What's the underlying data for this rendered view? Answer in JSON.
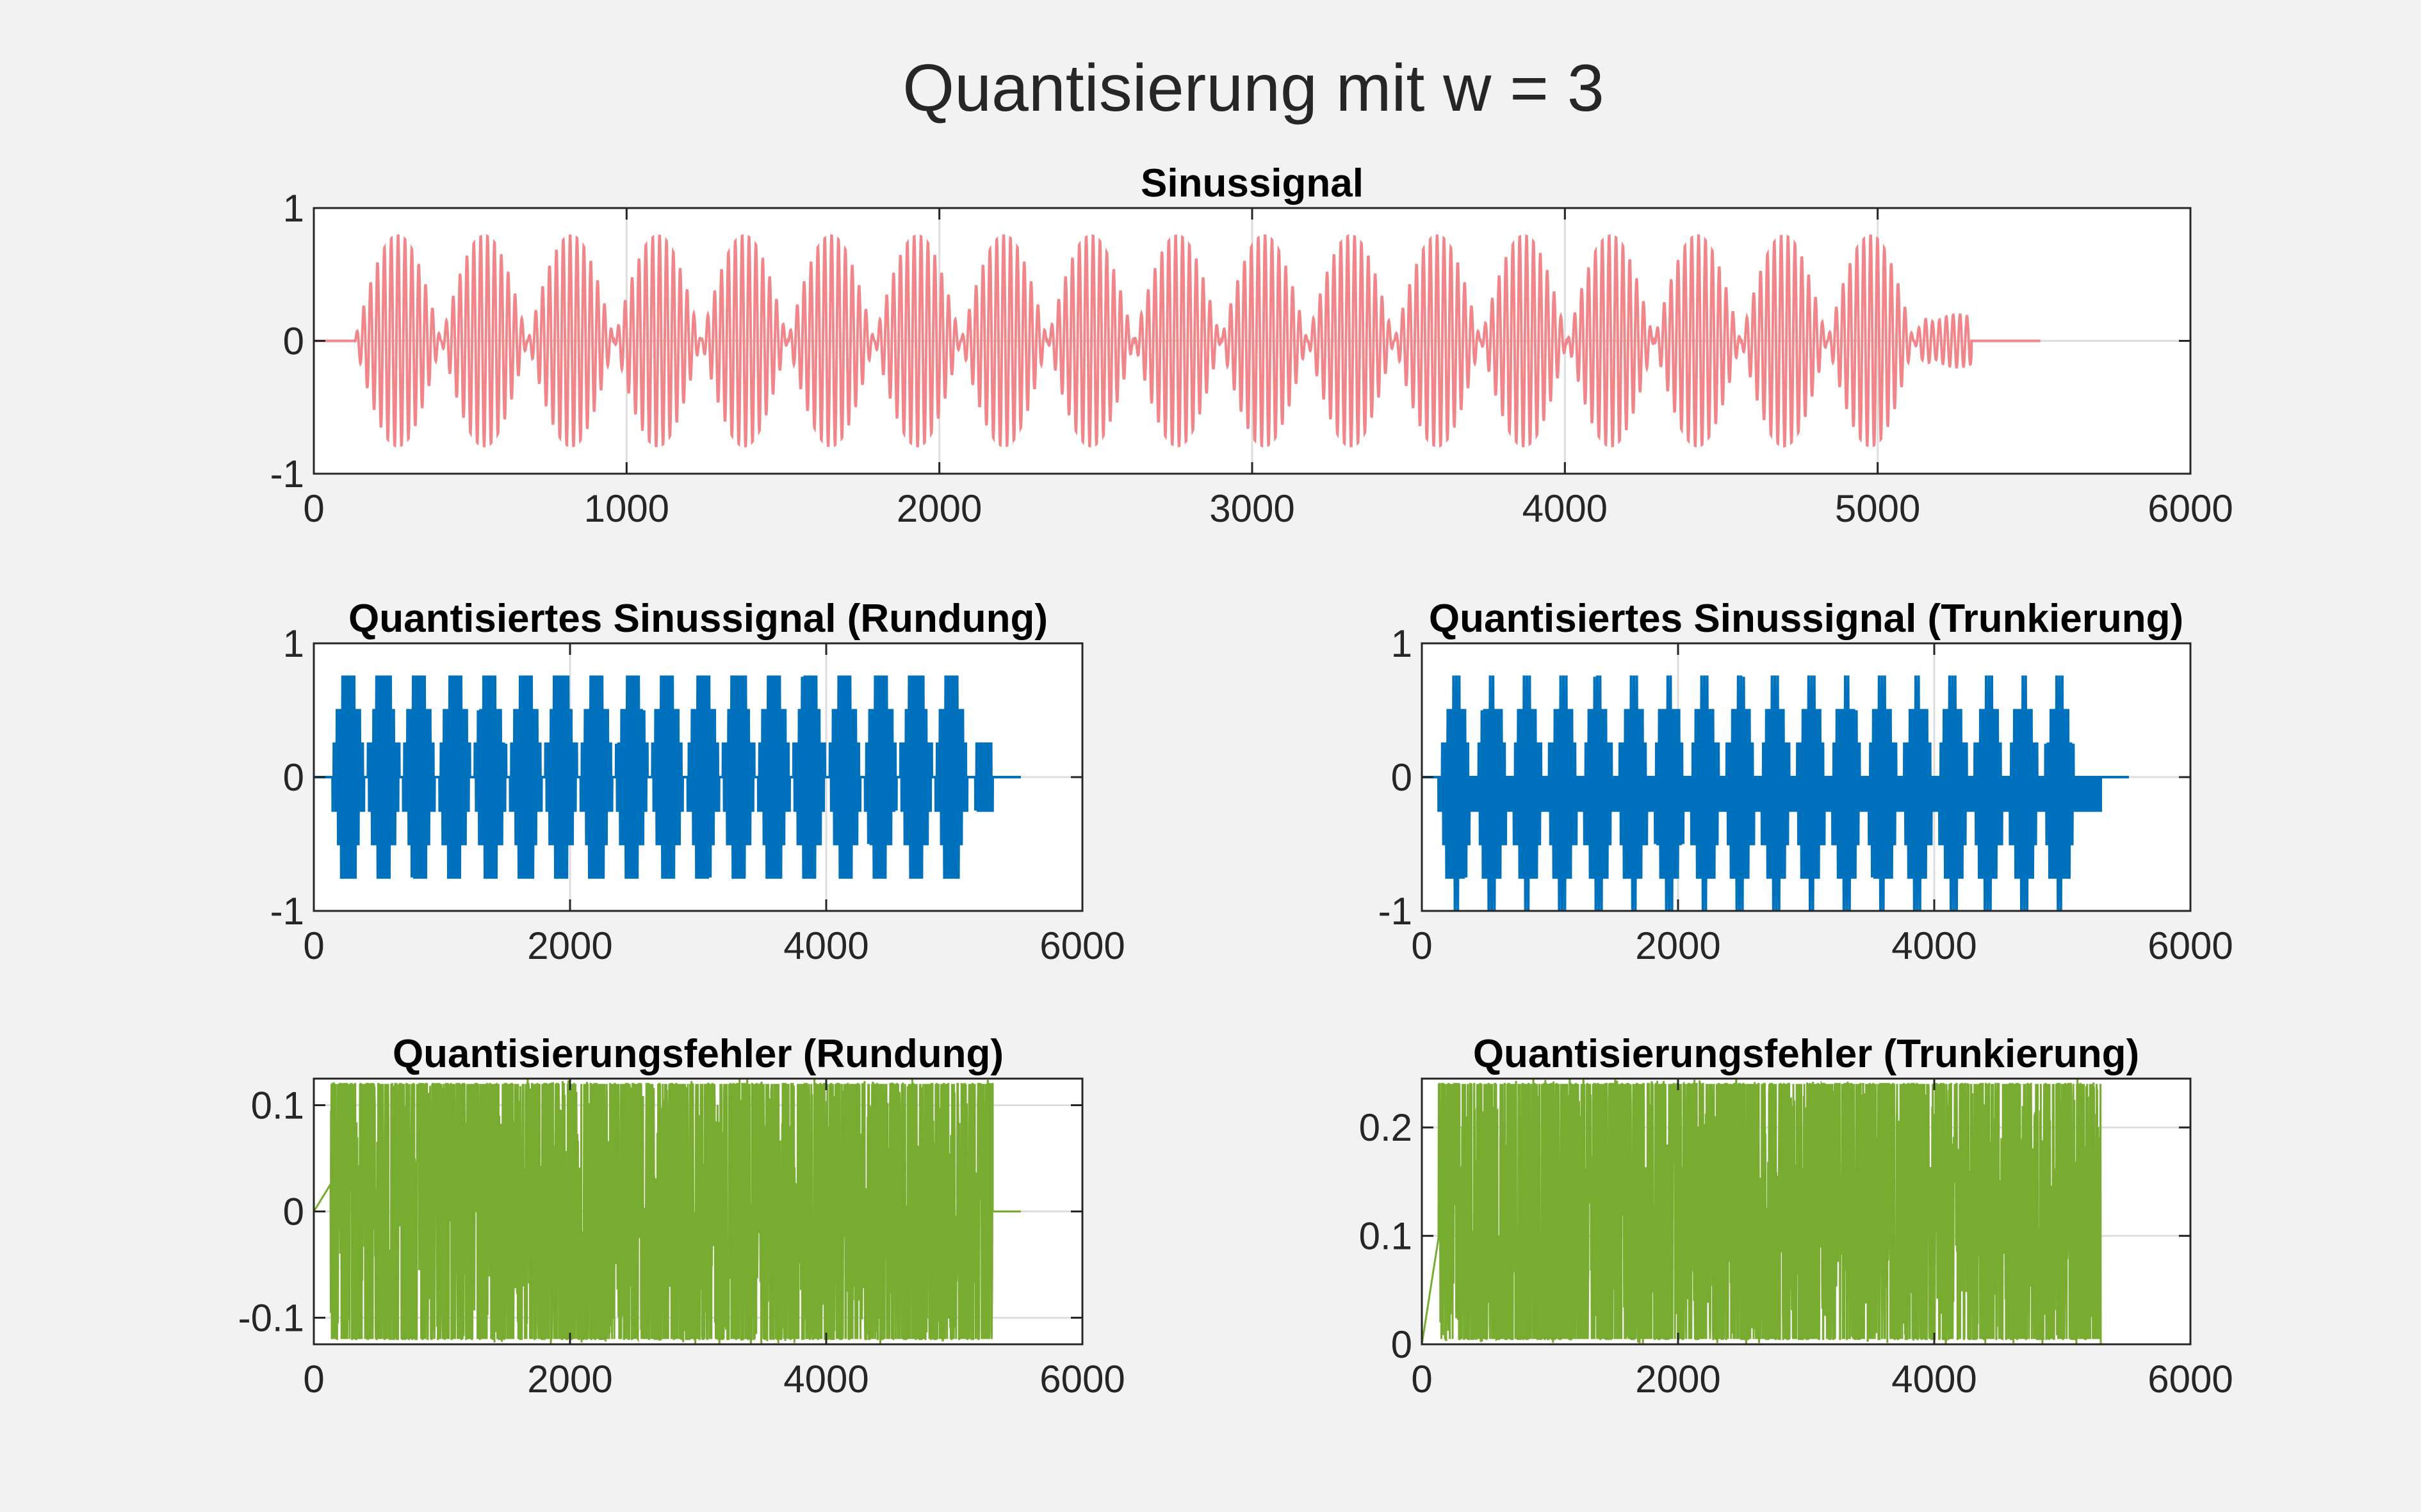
{
  "figure": {
    "title": "Quantisierung mit w = 3",
    "background": "#f2f2f2"
  },
  "chart_data": [
    {
      "type": "line",
      "title": "Sinussignal",
      "xlabel": "",
      "ylabel": "",
      "xlim": [
        0,
        6000
      ],
      "ylim": [
        -1,
        1
      ],
      "xticks": [
        0,
        1000,
        2000,
        3000,
        4000,
        5000,
        6000
      ],
      "xtick_labels": [
        "0",
        "1000",
        "2000",
        "3000",
        "4000",
        "5000",
        "6000"
      ],
      "yticks": [
        -1,
        0,
        1
      ],
      "ytick_labels": [
        "-1",
        "0",
        "1"
      ],
      "grid": true,
      "color": "#f0868a",
      "signal": {
        "kind": "am-sine",
        "start": 130,
        "end": 5300,
        "tail_end": 5520,
        "amplitude": 0.8,
        "carrier_period": 22,
        "envelope_period": 277
      }
    },
    {
      "type": "line",
      "title": "Quantisiertes Sinussignal (Rundung)",
      "xlabel": "",
      "ylabel": "",
      "xlim": [
        0,
        6000
      ],
      "ylim": [
        -1,
        1
      ],
      "xticks": [
        0,
        2000,
        4000,
        6000
      ],
      "xtick_labels": [
        "0",
        "2000",
        "4000",
        "6000"
      ],
      "yticks": [
        -1,
        0,
        1
      ],
      "ytick_labels": [
        "-1",
        "0",
        "1"
      ],
      "grid": true,
      "color": "#0072bd",
      "signal": {
        "kind": "quant-round",
        "start": 130,
        "end": 5300,
        "tail_end": 5520,
        "step": 0.25,
        "levels": [
          -0.75,
          0.75
        ]
      }
    },
    {
      "type": "line",
      "title": "Quantisiertes Sinussignal (Trunkierung)",
      "xlabel": "",
      "ylabel": "",
      "xlim": [
        0,
        6000
      ],
      "ylim": [
        -1,
        1
      ],
      "xticks": [
        0,
        2000,
        4000,
        6000
      ],
      "xtick_labels": [
        "0",
        "2000",
        "4000",
        "6000"
      ],
      "yticks": [
        -1,
        0,
        1
      ],
      "ytick_labels": [
        "-1",
        "0",
        "1"
      ],
      "grid": true,
      "color": "#0072bd",
      "signal": {
        "kind": "quant-trunc",
        "start": 130,
        "end": 5300,
        "tail_end": 5520,
        "step": 0.25,
        "levels": [
          -1,
          0.75
        ]
      }
    },
    {
      "type": "line",
      "title": "Quantisierungsfehler (Rundung)",
      "xlabel": "",
      "ylabel": "",
      "xlim": [
        0,
        6000
      ],
      "ylim": [
        -0.125,
        0.125
      ],
      "xticks": [
        0,
        2000,
        4000,
        6000
      ],
      "xtick_labels": [
        "0",
        "2000",
        "4000",
        "6000"
      ],
      "yticks": [
        -0.1,
        0,
        0.1
      ],
      "ytick_labels": [
        "-0.1",
        "0",
        "0.1"
      ],
      "grid": true,
      "color": "#77ac30",
      "signal": {
        "kind": "error-round",
        "start": 130,
        "end": 5300,
        "tail_end": 5520,
        "range": [
          -0.125,
          0.125
        ]
      }
    },
    {
      "type": "line",
      "title": "Quantisierungsfehler (Trunkierung)",
      "xlabel": "",
      "ylabel": "",
      "xlim": [
        0,
        6000
      ],
      "ylim": [
        0,
        0.245
      ],
      "xticks": [
        0,
        2000,
        4000,
        6000
      ],
      "xtick_labels": [
        "0",
        "2000",
        "4000",
        "6000"
      ],
      "yticks": [
        0,
        0.1,
        0.2
      ],
      "ytick_labels": [
        "0",
        "0.1",
        "0.2"
      ],
      "grid": true,
      "color": "#77ac30",
      "signal": {
        "kind": "error-trunc",
        "start": 130,
        "end": 5300,
        "tail_end": 5520,
        "range": [
          0,
          0.245
        ]
      }
    }
  ]
}
